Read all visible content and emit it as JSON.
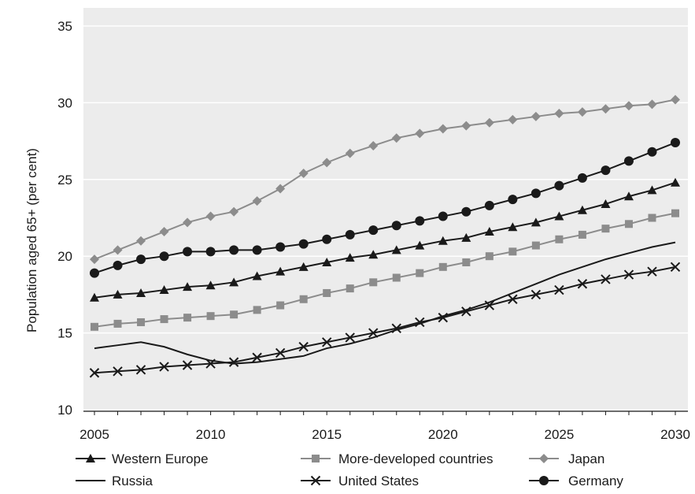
{
  "chart_data": {
    "type": "line",
    "title": "",
    "xlabel": "",
    "ylabel": "Population aged 65+ (per cent)",
    "xlim": [
      2005,
      2030
    ],
    "ylim": [
      10,
      35
    ],
    "x_ticks": [
      2005,
      2010,
      2015,
      2020,
      2025,
      2030
    ],
    "y_ticks": [
      10,
      15,
      20,
      25,
      30,
      35
    ],
    "grid": "horizontal",
    "legend_position": "bottom",
    "background": "#ececec",
    "x": [
      2005,
      2006,
      2007,
      2008,
      2009,
      2010,
      2011,
      2012,
      2013,
      2014,
      2015,
      2016,
      2017,
      2018,
      2019,
      2020,
      2021,
      2022,
      2023,
      2024,
      2025,
      2026,
      2027,
      2028,
      2029,
      2030
    ],
    "series": [
      {
        "name": "Western Europe",
        "marker": "triangle",
        "color": "#1a1a1a",
        "values": [
          17.3,
          17.5,
          17.6,
          17.8,
          18.0,
          18.1,
          18.3,
          18.7,
          19.0,
          19.3,
          19.6,
          19.9,
          20.1,
          20.4,
          20.7,
          21.0,
          21.2,
          21.6,
          21.9,
          22.2,
          22.6,
          23.0,
          23.4,
          23.9,
          24.3,
          24.8
        ]
      },
      {
        "name": "More-developed countries",
        "marker": "square",
        "color": "#8c8c8c",
        "values": [
          15.4,
          15.6,
          15.7,
          15.9,
          16.0,
          16.1,
          16.2,
          16.5,
          16.8,
          17.2,
          17.6,
          17.9,
          18.3,
          18.6,
          18.9,
          19.3,
          19.6,
          20.0,
          20.3,
          20.7,
          21.1,
          21.4,
          21.8,
          22.1,
          22.5,
          22.8
        ]
      },
      {
        "name": "Japan",
        "marker": "diamond",
        "color": "#8c8c8c",
        "values": [
          19.8,
          20.4,
          21.0,
          21.6,
          22.2,
          22.6,
          22.9,
          23.6,
          24.4,
          25.4,
          26.1,
          26.7,
          27.2,
          27.7,
          28.0,
          28.3,
          28.5,
          28.7,
          28.9,
          29.1,
          29.3,
          29.4,
          29.6,
          29.8,
          29.9,
          30.2
        ]
      },
      {
        "name": "Russia",
        "marker": "none",
        "color": "#1a1a1a",
        "values": [
          14.0,
          14.2,
          14.4,
          14.1,
          13.6,
          13.2,
          13.0,
          13.1,
          13.3,
          13.5,
          14.0,
          14.3,
          14.7,
          15.2,
          15.6,
          16.1,
          16.5,
          17.0,
          17.6,
          18.2,
          18.8,
          19.3,
          19.8,
          20.2,
          20.6,
          20.9
        ]
      },
      {
        "name": "United States",
        "marker": "x",
        "color": "#1a1a1a",
        "values": [
          12.4,
          12.5,
          12.6,
          12.8,
          12.9,
          13.0,
          13.1,
          13.4,
          13.7,
          14.1,
          14.4,
          14.7,
          15.0,
          15.3,
          15.7,
          16.0,
          16.4,
          16.8,
          17.2,
          17.5,
          17.8,
          18.2,
          18.5,
          18.8,
          19.0,
          19.3
        ]
      },
      {
        "name": "Germany",
        "marker": "circle",
        "color": "#1a1a1a",
        "values": [
          18.9,
          19.4,
          19.8,
          20.0,
          20.3,
          20.3,
          20.4,
          20.4,
          20.6,
          20.8,
          21.1,
          21.4,
          21.7,
          22.0,
          22.3,
          22.6,
          22.9,
          23.3,
          23.7,
          24.1,
          24.6,
          25.1,
          25.6,
          26.2,
          26.8,
          27.4
        ]
      }
    ]
  }
}
